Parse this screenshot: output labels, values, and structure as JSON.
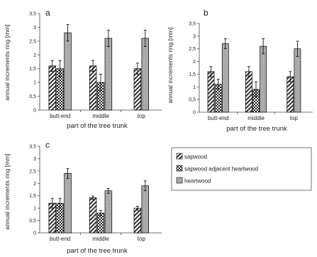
{
  "chart_data": [
    {
      "type": "bar",
      "panel_label": "a",
      "categories": [
        "butt-end",
        "middle",
        "top"
      ],
      "xlabel": "part of the tree trunk",
      "ylabel": "annual increments ring [mm]",
      "ylim": [
        0,
        3.5
      ],
      "yticks": [
        "0",
        "0,5",
        "1",
        "1,5",
        "2",
        "2,5",
        "3",
        "3,5"
      ],
      "grid": false,
      "series": [
        {
          "name": "sapwood",
          "values": [
            1.6,
            1.6,
            1.5
          ],
          "errors": [
            0.2,
            0.2,
            0.2
          ]
        },
        {
          "name": "sapwood adjacent heartwood",
          "values": [
            1.5,
            1.0,
            null
          ],
          "errors": [
            0.3,
            0.3,
            null
          ]
        },
        {
          "name": "heartwood",
          "values": [
            2.8,
            2.6,
            2.6
          ],
          "errors": [
            0.3,
            0.3,
            0.3
          ]
        }
      ]
    },
    {
      "type": "bar",
      "panel_label": "b",
      "categories": [
        "butt-end",
        "middle",
        "top"
      ],
      "xlabel": "part of the tree trunk",
      "ylabel": "annual increments ring [mm]",
      "ylim": [
        0,
        3.5
      ],
      "yticks": [
        "0",
        "0,5",
        "1",
        "1,5",
        "2",
        "2,5",
        "3",
        "3,5"
      ],
      "grid": false,
      "series": [
        {
          "name": "sapwood",
          "values": [
            1.6,
            1.6,
            1.4
          ],
          "errors": [
            0.2,
            0.2,
            0.2
          ]
        },
        {
          "name": "sapwood adjacent heartwood",
          "values": [
            1.1,
            0.9,
            null
          ],
          "errors": [
            0.2,
            0.3,
            null
          ]
        },
        {
          "name": "heartwood",
          "values": [
            2.7,
            2.6,
            2.5
          ],
          "errors": [
            0.2,
            0.3,
            0.3
          ]
        }
      ]
    },
    {
      "type": "bar",
      "panel_label": "c",
      "categories": [
        "butt-end",
        "middle",
        "top"
      ],
      "xlabel": "part of the tree trunk",
      "ylabel": "annual increments ring [mm]",
      "ylim": [
        0,
        3.5
      ],
      "yticks": [
        "0",
        "0,5",
        "1",
        "1,5",
        "2",
        "2,5",
        "3",
        "3,5"
      ],
      "grid": false,
      "series": [
        {
          "name": "sapwood",
          "values": [
            1.2,
            1.42,
            1.0
          ],
          "errors": [
            0.2,
            0.07,
            0.08
          ]
        },
        {
          "name": "sapwood adjacent heartwood",
          "values": [
            1.2,
            0.8,
            null
          ],
          "errors": [
            0.2,
            0.1,
            null
          ]
        },
        {
          "name": "heartwood",
          "values": [
            2.4,
            1.7,
            1.9
          ],
          "errors": [
            0.2,
            0.1,
            0.2
          ]
        }
      ]
    }
  ],
  "legend": {
    "placement": "right of panel c",
    "entries": [
      "sapwood",
      "sapwood adjacent heartwood",
      "heartwood"
    ]
  }
}
